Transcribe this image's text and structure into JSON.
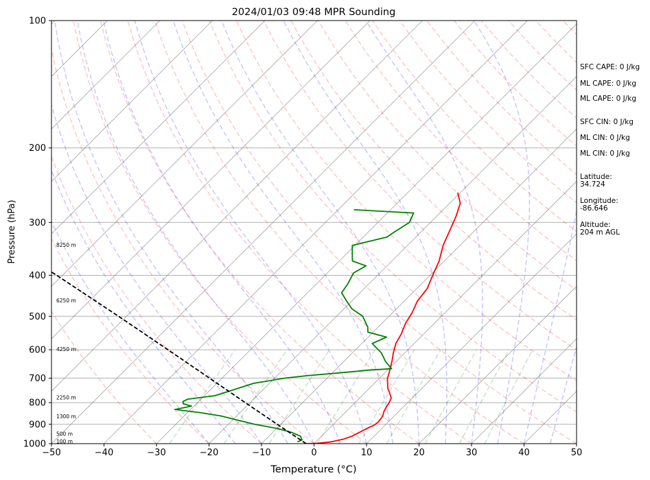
{
  "chart_data": {
    "type": "line",
    "title": "2024/01/03 09:48 MPR Sounding",
    "xlabel": "Temperature (°C)",
    "ylabel": "Pressure (hPa)",
    "xlim": [
      -50,
      50
    ],
    "ylim": [
      1000,
      100
    ],
    "y_scale": "log",
    "skew": "skew-T log-p",
    "x_ticks": [
      "−50",
      "−40",
      "−30",
      "−20",
      "−10",
      "0",
      "10",
      "20",
      "30",
      "40",
      "50"
    ],
    "y_ticks": [
      "1000",
      "900",
      "800",
      "700",
      "600",
      "500",
      "400",
      "300",
      "200",
      "100"
    ],
    "series": [
      {
        "color": "#ff0000",
        "pressure": [
          1000,
          998,
          990,
          975,
          960,
          940,
          920,
          905,
          890,
          875,
          860,
          840,
          820,
          800,
          780,
          760,
          740,
          720,
          700,
          680,
          665,
          640,
          610,
          580,
          550,
          520,
          490,
          460,
          430,
          400,
          370,
          340,
          310,
          290,
          270,
          255
        ],
        "temperature": [
          -1.5,
          0.5,
          3.0,
          4.8,
          5.8,
          6.5,
          7.2,
          7.9,
          8.1,
          8.0,
          7.8,
          7.2,
          6.8,
          6.5,
          6.0,
          4.8,
          3.5,
          2.5,
          1.5,
          0.8,
          0.2,
          -0.8,
          -2.2,
          -3.5,
          -4.3,
          -5.5,
          -6.3,
          -7.5,
          -8.0,
          -9.5,
          -11.0,
          -13.2,
          -15.0,
          -16.3,
          -18.0,
          -20.5
        ]
      },
      {
        "color": "#008000",
        "pressure": [
          990,
          980,
          960,
          940,
          920,
          900,
          880,
          860,
          845,
          830,
          815,
          805,
          795,
          785,
          770,
          750,
          720,
          700,
          690,
          680,
          670,
          665,
          640,
          610,
          580,
          560,
          545,
          530,
          520,
          500,
          480,
          460,
          440,
          420,
          395,
          380,
          370,
          355,
          340,
          325,
          315,
          300,
          285,
          280
        ],
        "dewpoint": [
          -3.5,
          -3.0,
          -4.0,
          -6.5,
          -10.0,
          -15.0,
          -19.0,
          -23.0,
          -27.5,
          -33.0,
          -30.5,
          -32.5,
          -33.0,
          -32.5,
          -28.0,
          -26.0,
          -23.0,
          -18.0,
          -14.0,
          -8.5,
          -3.5,
          0.5,
          -2.0,
          -4.5,
          -8.0,
          -6.5,
          -11.0,
          -12.0,
          -13.0,
          -15.0,
          -18.5,
          -21.0,
          -23.5,
          -24.0,
          -25.0,
          -24.0,
          -27.5,
          -29.0,
          -30.5,
          -25.5,
          -25.0,
          -24.0,
          -25.0,
          -37.0
        ]
      },
      {
        "name": "parcel",
        "color": "#000000",
        "style": "dashed",
        "pressure": [
          1000,
          900,
          800,
          700,
          600,
          500,
          400,
          300
        ],
        "temperature": [
          -1.5,
          -10.7,
          -20.9,
          -32.4,
          -45.7,
          -61.5,
          -81.1,
          -106.9
        ]
      }
    ],
    "height_labels": [
      "100 m",
      "500 m",
      "1300 m",
      "2250 m",
      "4250 m",
      "6250 m",
      "8250 m"
    ],
    "height_label_pressures": [
      990,
      950,
      865,
      780,
      600,
      460,
      340
    ],
    "background_lines": [
      "dry adiabats",
      "moist adiabats",
      "mixing ratio",
      "isotherms"
    ],
    "grid": true
  },
  "annotations": {
    "sfc_cape": "SFC CAPE: 0 J/kg",
    "ml_cape_1": "ML CAPE: 0 J/kg",
    "ml_cape_2": "ML CAPE: 0 J/kg",
    "sfc_cin": "SFC CIN: 0 J/kg",
    "ml_cin_1": "ML CIN: 0 J/kg",
    "ml_cin_2": "ML CIN: 0 J/kg",
    "latitude": "Latitude:\n34.724",
    "longitude": "Longitude:\n-86.646",
    "altitude": "Altitude:\n204 m AGL"
  },
  "colors": {
    "temperature": "#ff0000",
    "dewpoint": "#008000",
    "parcel": "#000000",
    "dry_adiabat": "#ff0000",
    "moist_adiabat": "#0000ff",
    "mixing_ratio": "#008000",
    "isotherm": "#808080",
    "grid": "#b0b0b0"
  }
}
